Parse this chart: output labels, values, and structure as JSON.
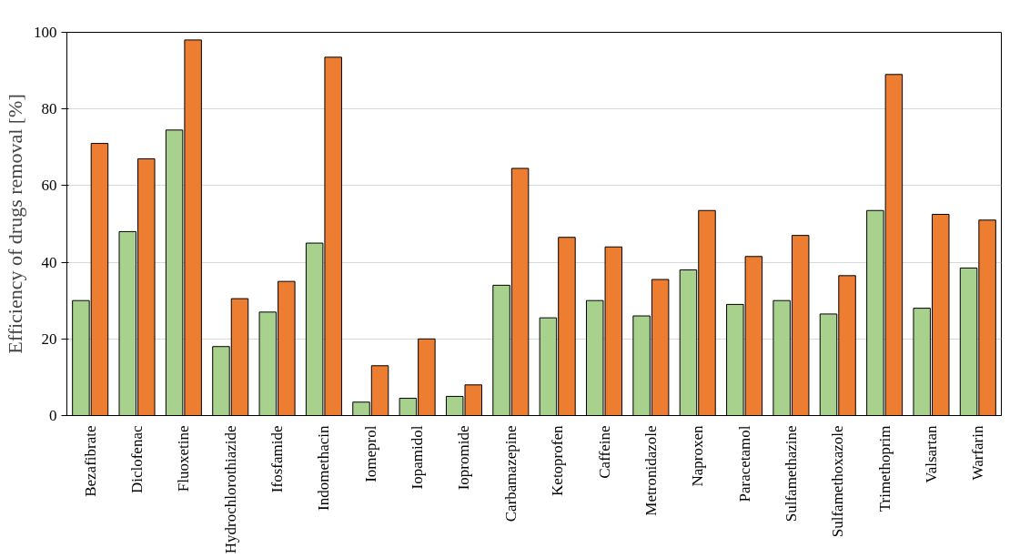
{
  "chart_data": {
    "type": "bar",
    "ylabel": "Efficiency of drugs removal [%]",
    "categories": [
      "Bezafibrate",
      "Diclofenac",
      "Fluoxetine",
      "Hydrochlorothiazide",
      "Ifosfamide",
      "Indomethacin",
      "Iomeprol",
      "Iopamidol",
      "Iopromide",
      "Carbamazepine",
      "Ketoprofen",
      "Caffeine",
      "Metronidazole",
      "Naproxen",
      "Paracetamol",
      "Sulfamethazine",
      "Sulfamethoxazole",
      "Trimethoprim",
      "Valsartan",
      "Warfarin"
    ],
    "series": [
      {
        "color": "#a9d18e",
        "values": [
          30,
          48,
          74.5,
          18,
          27,
          45,
          3.5,
          4.5,
          5,
          34,
          25.5,
          30,
          26,
          38,
          29,
          30,
          26.5,
          53.5,
          28,
          38.5
        ]
      },
      {
        "color": "#ed7d31",
        "values": [
          71,
          67,
          98,
          30.5,
          35,
          93.5,
          13,
          20,
          8,
          64.5,
          46.5,
          44,
          35.5,
          53.5,
          41.5,
          47,
          36.5,
          89,
          52.5,
          51
        ]
      }
    ],
    "ylim": [
      0,
      100
    ],
    "yticks": [
      0,
      20,
      40,
      60,
      80,
      100
    ],
    "grid": "y"
  }
}
